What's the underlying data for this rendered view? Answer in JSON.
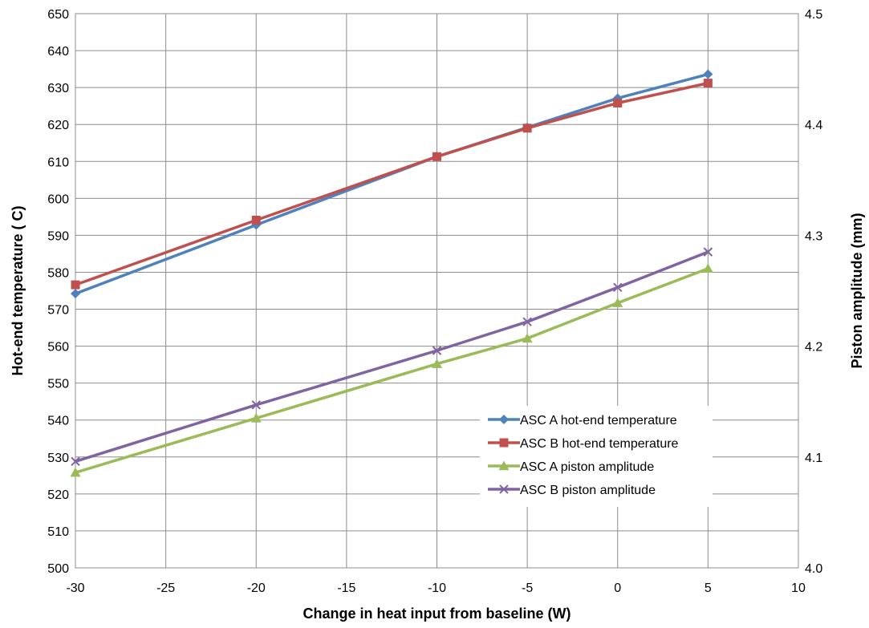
{
  "chart_data": {
    "type": "line",
    "title": "",
    "xlabel": "Change in heat input from baseline (W)",
    "ylabel": "Hot-end temperature ( C)",
    "y2label": "Piston amplitude (mm)",
    "xlim": [
      -30,
      10
    ],
    "ylim": [
      500,
      650
    ],
    "y2lim": [
      4.0,
      4.5
    ],
    "x_ticks": [
      "-30",
      "-25",
      "-20",
      "-15",
      "-10",
      "-5",
      "0",
      "5",
      "10"
    ],
    "y_ticks": [
      "500",
      "510",
      "520",
      "530",
      "540",
      "550",
      "560",
      "570",
      "580",
      "590",
      "600",
      "610",
      "620",
      "630",
      "640",
      "650"
    ],
    "y2_ticks": [
      "4.0",
      "4.1",
      "4.2",
      "4.3",
      "4.4",
      "4.5"
    ],
    "grid": true,
    "legend_position": "bottom-right",
    "x": [
      -30,
      -20,
      -10,
      -5,
      0,
      5
    ],
    "series": [
      {
        "name": "ASC A hot-end temperature",
        "axis": "left",
        "color": "#4f81bd",
        "marker": "diamond",
        "values": [
          574.2,
          592.8,
          611.3,
          619.2,
          627.1,
          633.6
        ]
      },
      {
        "name": "ASC B hot-end temperature",
        "axis": "left",
        "color": "#c0504d",
        "marker": "square",
        "values": [
          576.6,
          594.1,
          611.3,
          619.0,
          625.8,
          631.2
        ]
      },
      {
        "name": "ASC A piston amplitude",
        "axis": "right",
        "color": "#9bbb59",
        "marker": "triangle",
        "values": [
          4.086,
          4.135,
          4.184,
          4.207,
          4.239,
          4.27
        ]
      },
      {
        "name": "ASC B piston amplitude",
        "axis": "right",
        "color": "#8064a2",
        "marker": "x",
        "values": [
          4.096,
          4.147,
          4.196,
          4.222,
          4.253,
          4.285
        ]
      }
    ]
  }
}
